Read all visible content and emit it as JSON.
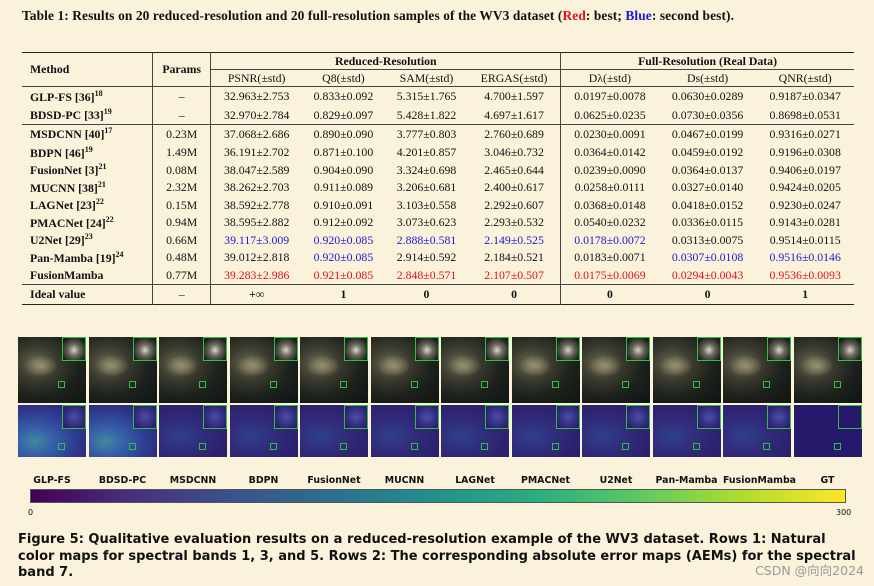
{
  "table_caption": {
    "prefix": "Table 1: Results on 20 reduced-resolution and 20 full-resolution samples of the WV3 dataset (",
    "red": "Red",
    "mid": ": best; ",
    "blue": "Blue",
    "suffix": ": second best)."
  },
  "table": {
    "header": {
      "method": "Method",
      "params": "Params",
      "reduced_group": "Reduced-Resolution",
      "full_group": "Full-Resolution (Real Data)",
      "metrics": [
        "PSNR(±std)",
        "Q8(±std)",
        "SAM(±std)",
        "ERGAS(±std)",
        "Dλ(±std)",
        "Ds(±std)",
        "QNR(±std)"
      ]
    },
    "group1": [
      {
        "name": "GLP-FS [36]",
        "sup": "18",
        "params": "–",
        "vals": [
          "32.963±2.753",
          "0.833±0.092",
          "5.315±1.765",
          "4.700±1.597",
          "0.0197±0.0078",
          "0.0630±0.0289",
          "0.9187±0.0347"
        ],
        "marks": [
          "",
          "",
          "",
          "",
          "",
          "",
          ""
        ]
      },
      {
        "name": "BDSD-PC [33]",
        "sup": "19",
        "params": "–",
        "vals": [
          "32.970±2.784",
          "0.829±0.097",
          "5.428±1.822",
          "4.697±1.617",
          "0.0625±0.0235",
          "0.0730±0.0356",
          "0.8698±0.0531"
        ],
        "marks": [
          "",
          "",
          "",
          "",
          "",
          "",
          ""
        ]
      }
    ],
    "group2": [
      {
        "name": "MSDCNN [40]",
        "sup": "17",
        "params": "0.23M",
        "vals": [
          "37.068±2.686",
          "0.890±0.090",
          "3.777±0.803",
          "2.760±0.689",
          "0.0230±0.0091",
          "0.0467±0.0199",
          "0.9316±0.0271"
        ],
        "marks": [
          "",
          "",
          "",
          "",
          "",
          "",
          ""
        ]
      },
      {
        "name": "BDPN [46]",
        "sup": "19",
        "params": "1.49M",
        "vals": [
          "36.191±2.702",
          "0.871±0.100",
          "4.201±0.857",
          "3.046±0.732",
          "0.0364±0.0142",
          "0.0459±0.0192",
          "0.9196±0.0308"
        ],
        "marks": [
          "",
          "",
          "",
          "",
          "",
          "",
          ""
        ]
      },
      {
        "name": "FusionNet [3]",
        "sup": "21",
        "params": "0.08M",
        "vals": [
          "38.047±2.589",
          "0.904±0.090",
          "3.324±0.698",
          "2.465±0.644",
          "0.0239±0.0090",
          "0.0364±0.0137",
          "0.9406±0.0197"
        ],
        "marks": [
          "",
          "",
          "",
          "",
          "",
          "",
          ""
        ]
      },
      {
        "name": "MUCNN [38]",
        "sup": "21",
        "params": "2.32M",
        "vals": [
          "38.262±2.703",
          "0.911±0.089",
          "3.206±0.681",
          "2.400±0.617",
          "0.0258±0.0111",
          "0.0327±0.0140",
          "0.9424±0.0205"
        ],
        "marks": [
          "",
          "",
          "",
          "",
          "",
          "",
          ""
        ]
      },
      {
        "name": "LAGNet [23]",
        "sup": "22",
        "params": "0.15M",
        "vals": [
          "38.592±2.778",
          "0.910±0.091",
          "3.103±0.558",
          "2.292±0.607",
          "0.0368±0.0148",
          "0.0418±0.0152",
          "0.9230±0.0247"
        ],
        "marks": [
          "",
          "",
          "",
          "",
          "",
          "",
          ""
        ]
      },
      {
        "name": "PMACNet [24]",
        "sup": "22",
        "params": "0.94M",
        "vals": [
          "38.595±2.882",
          "0.912±0.092",
          "3.073±0.623",
          "2.293±0.532",
          "0.0540±0.0232",
          "0.0336±0.0115",
          "0.9143±0.0281"
        ],
        "marks": [
          "",
          "",
          "",
          "",
          "",
          "",
          ""
        ]
      },
      {
        "name": "U2Net [29]",
        "sup": "23",
        "params": "0.66M",
        "vals": [
          "39.117±3.009",
          "0.920±0.085",
          "2.888±0.581",
          "2.149±0.525",
          "0.0178±0.0072",
          "0.0313±0.0075",
          "0.9514±0.0115"
        ],
        "marks": [
          "blue",
          "blue",
          "blue",
          "blue",
          "blue",
          "",
          ""
        ]
      },
      {
        "name": "Pan-Mamba [19]",
        "sup": "24",
        "params": "0.48M",
        "vals": [
          "39.012±2.818",
          "0.920±0.085",
          "2.914±0.592",
          "2.184±0.521",
          "0.0183±0.0071",
          "0.0307±0.0108",
          "0.9516±0.0146"
        ],
        "marks": [
          "",
          "blue",
          "",
          "",
          "",
          "blue",
          "blue"
        ]
      },
      {
        "name": "FusionMamba",
        "sup": "",
        "params": "0.77M",
        "vals": [
          "39.283±2.986",
          "0.921±0.085",
          "2.848±0.571",
          "2.107±0.507",
          "0.0175±0.0069",
          "0.0294±0.0043",
          "0.9536±0.0093"
        ],
        "marks": [
          "red",
          "red",
          "red",
          "red",
          "red",
          "red",
          "red"
        ]
      }
    ],
    "ideal": {
      "name": "Ideal value",
      "params": "–",
      "vals": [
        "+∞",
        "1",
        "0",
        "0",
        "0",
        "0",
        "1"
      ]
    }
  },
  "figure": {
    "labels": [
      "GLP-FS",
      "BDSD-PC",
      "MSDCNN",
      "BDPN",
      "FusionNet",
      "MUCNN",
      "LAGNet",
      "PMACNet",
      "U2Net",
      "Pan-Mamba",
      "FusionMamba",
      "GT"
    ],
    "colorbar_min": "0",
    "colorbar_max": "300"
  },
  "figure_caption": "Figure 5: Qualitative evaluation results on a reduced-resolution example of the WV3 dataset. Rows 1: Natural color maps for spectral bands 1, 3, and 5. Rows 2: The corresponding absolute error maps (AEMs) for the spectral band 7.",
  "watermark": "CSDN @向向2024"
}
